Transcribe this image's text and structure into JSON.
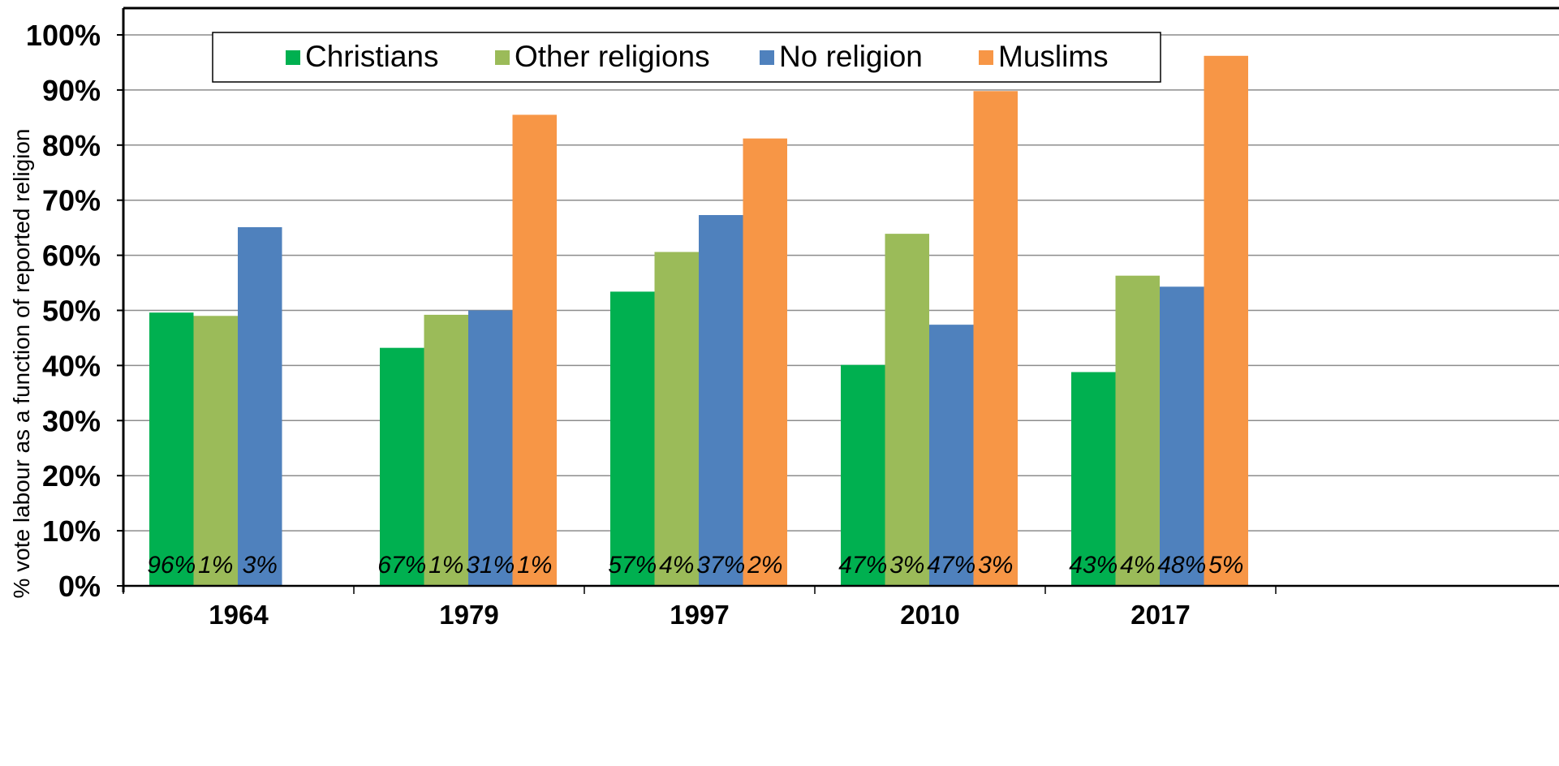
{
  "chart_data": {
    "type": "bar",
    "ylabel": "% vote labour as a function of reported religion",
    "xlabel": "",
    "ylim": [
      0,
      100
    ],
    "yticks": [
      "0%",
      "10%",
      "20%",
      "30%",
      "40%",
      "50%",
      "60%",
      "70%",
      "80%",
      "90%",
      "100%"
    ],
    "grid": true,
    "legend_position": "top",
    "categories": [
      "1964",
      "1979",
      "1997",
      "2010",
      "2017"
    ],
    "series": [
      {
        "name": "Christians",
        "color": "#00b050",
        "values": [
          49.6,
          43.2,
          53.4,
          40.1,
          38.8
        ],
        "labels": [
          "96%",
          "67%",
          "57%",
          "47%",
          "43%"
        ]
      },
      {
        "name": "Other religions",
        "color": "#9bbb59",
        "values": [
          49.0,
          49.2,
          60.6,
          63.9,
          56.3
        ],
        "labels": [
          "1%",
          "1%",
          "4%",
          "3%",
          "4%"
        ]
      },
      {
        "name": "No religion",
        "color": "#4f81bd",
        "values": [
          65.1,
          50.0,
          67.3,
          47.4,
          54.3
        ],
        "labels": [
          "3%",
          "31%",
          "37%",
          "47%",
          "48%"
        ]
      },
      {
        "name": "Muslims",
        "color": "#f79646",
        "values": [
          null,
          85.5,
          81.2,
          89.8,
          96.2
        ],
        "labels": [
          "",
          "1%",
          "2%",
          "3%",
          "5%"
        ]
      }
    ]
  }
}
